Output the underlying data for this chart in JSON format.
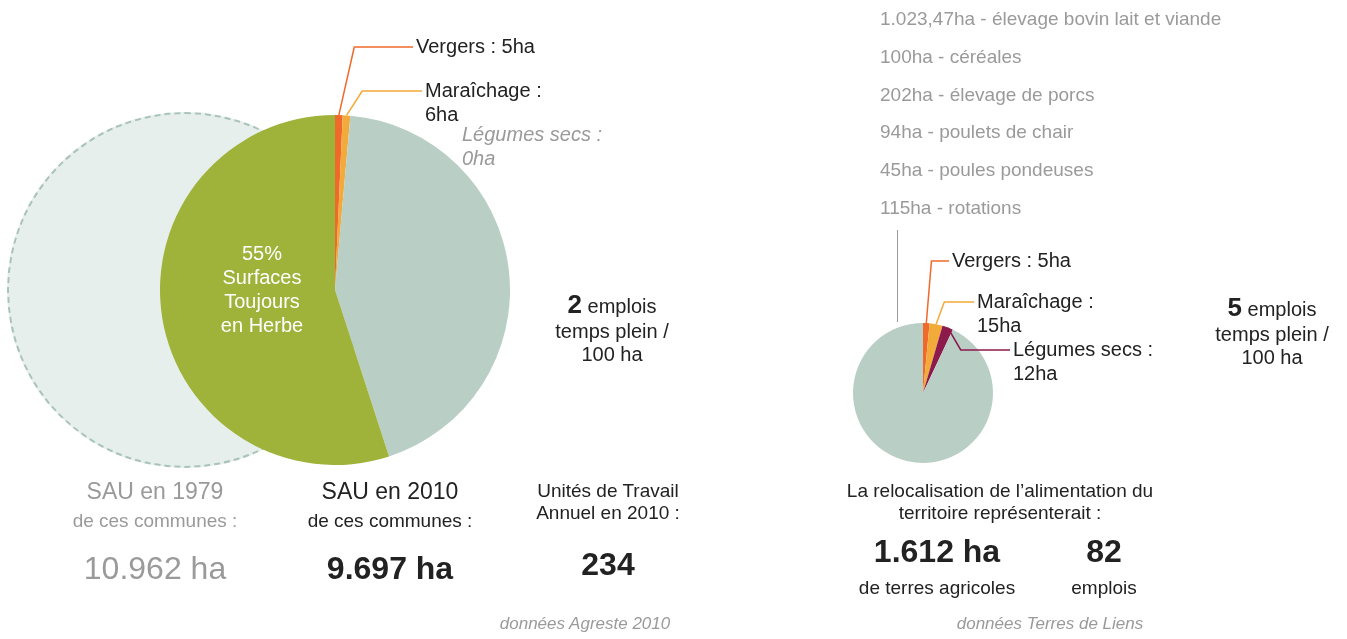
{
  "chart_data": [
    {
      "type": "pie",
      "categories": [
        "Vergers : 5ha",
        "Maraîchage : 6ha",
        "Légumes secs : 0ha",
        null,
        "55% Surfaces Toujours en Herbe"
      ],
      "values": [
        0.7,
        0.7,
        0,
        43.6,
        55
      ],
      "colors": [
        "#ef6a2a",
        "#f2aa3a",
        "#f2aa3a",
        "#b9cfc6",
        "#9fb23a"
      ],
      "legend": false,
      "annotations": [
        "SAU en 1979",
        "de ces communes :",
        "10.962 ha",
        "SAU en 2010",
        "de ces communes :",
        "9.697 ha",
        "Unités de Travail Annuel en 2010 :",
        "234",
        "données Agreste 2010",
        "2 emplois temps plein / 100 ha"
      ]
    },
    {
      "type": "pie",
      "categories": [
        "Vergers : 5ha",
        "Maraîchage : 15ha",
        "Légumes secs : 12ha",
        null
      ],
      "values": [
        1.5,
        3,
        2.5,
        93
      ],
      "colors": [
        "#ef6a2a",
        "#f2aa3a",
        "#8c1a4b",
        "#b9cfc6"
      ],
      "legend": false,
      "annotations": [
        "1.023,47ha - élevage bovin lait et viande",
        "100ha - céréales",
        "202ha - élevage de porcs",
        "94ha - poulets de chair",
        "45ha - poules pondeuses",
        "115ha - rotations",
        "La relocalisation de l’alimentation du territoire représenterait :",
        "1.612 ha",
        "de terres agricoles",
        "82",
        "emplois",
        "5 emplois temps plein / 100 ha",
        "données Terres de Liens"
      ]
    }
  ]
}
